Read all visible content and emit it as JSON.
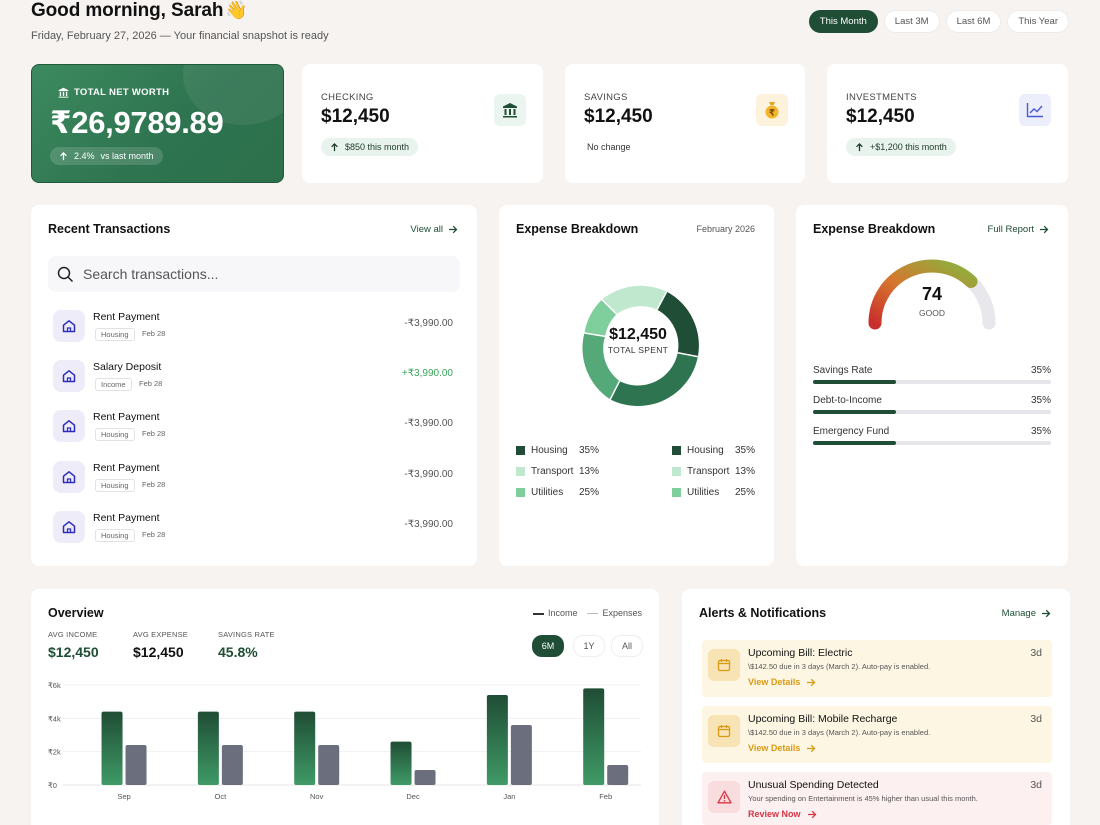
{
  "header": {
    "greeting": "Good morning, Sarah",
    "wave": "👋",
    "subtitle": "Friday, February 27, 2026 — Your financial snapshot is ready",
    "ranges": [
      "This Month",
      "Last 3M",
      "Last 6M",
      "This Year"
    ],
    "active_range": "This Month"
  },
  "net_worth": {
    "label": "TOTAL NET WORTH",
    "value": "₹26,9789.89",
    "change": "2.4%",
    "change_suffix": "vs last month"
  },
  "accounts": [
    {
      "label": "CHECKING",
      "amount": "$12,450",
      "note": "$850 this month",
      "icon": "bank-icon"
    },
    {
      "label": "SAVINGS",
      "amount": "$12,450",
      "note": "No change",
      "icon": "money-bag-icon"
    },
    {
      "label": "INVESTMENTS",
      "amount": "$12,450",
      "note": "+$1,200 this month",
      "icon": "trend-line-icon"
    }
  ],
  "transactions": {
    "title": "Recent Transactions",
    "view_all": "View all",
    "search_placeholder": "Search transactions...",
    "items": [
      {
        "name": "Rent Payment",
        "tag": "Housing",
        "date": "Feb 28",
        "amount": "-₹3,990.00"
      },
      {
        "name": "Salary Deposit",
        "tag": "Income",
        "date": "Feb 28",
        "amount": "+₹3,990.00"
      },
      {
        "name": "Rent Payment",
        "tag": "Housing",
        "date": "Feb 28",
        "amount": "-₹3,990.00"
      },
      {
        "name": "Rent Payment",
        "tag": "Housing",
        "date": "Feb 28",
        "amount": "-₹3,990.00"
      },
      {
        "name": "Rent Payment",
        "tag": "Housing",
        "date": "Feb 28",
        "amount": "-₹3,990.00"
      }
    ]
  },
  "expense": {
    "title": "Expense Breakdown",
    "period": "February 2026",
    "total": "$12,450",
    "total_label": "TOTAL SPENT",
    "legend": [
      {
        "name": "Housing",
        "pct": "35%",
        "color": "#1f4d35"
      },
      {
        "name": "Transport",
        "pct": "13%",
        "color": "#bfe8cf"
      },
      {
        "name": "Utilities",
        "pct": "25%",
        "color": "#7fcf9c"
      },
      {
        "name": "Housing",
        "pct": "35%",
        "color": "#1f4d35"
      },
      {
        "name": "Transport",
        "pct": "13%",
        "color": "#bfe8cf"
      },
      {
        "name": "Utilities",
        "pct": "25%",
        "color": "#7fcf9c"
      }
    ]
  },
  "score": {
    "title": "Expense Breakdown",
    "link": "Full Report",
    "value": "74",
    "fraction": 0.74,
    "label": "GOOD",
    "metrics": [
      {
        "name": "Savings Rate",
        "pct": "35%",
        "fill": 0.35
      },
      {
        "name": "Debt-to-Income",
        "pct": "35%",
        "fill": 0.35
      },
      {
        "name": "Emergency Fund",
        "pct": "35%",
        "fill": 0.35
      }
    ]
  },
  "overview": {
    "title": "Overview",
    "legend_income": "Income",
    "legend_expenses": "Expenses",
    "stats": [
      {
        "label": "AVG INCOME",
        "value": "$12,450",
        "color": "#1f4d35"
      },
      {
        "label": "AVG EXPENSE",
        "value": "$12,450",
        "color": "#111111"
      },
      {
        "label": "SAVINGS RATE",
        "value": "45.8%",
        "color": "#1f4d35"
      }
    ],
    "tabs": [
      "6M",
      "1Y",
      "All"
    ],
    "active_tab": "6M",
    "chart_data": {
      "type": "bar",
      "categories": [
        "Sep",
        "Oct",
        "Nov",
        "Dec",
        "Jan",
        "Feb"
      ],
      "y_ticks": [
        "₹0",
        "₹2k",
        "₹4k",
        "₹6k"
      ],
      "ylim": [
        0,
        6000
      ],
      "series": [
        {
          "name": "Income",
          "values": [
            4400,
            4400,
            4400,
            2600,
            5400,
            5800
          ],
          "color": "#2f7a50"
        },
        {
          "name": "Expenses",
          "values": [
            2400,
            2400,
            2400,
            900,
            3600,
            1200
          ],
          "color": "#6b6e7d"
        }
      ]
    }
  },
  "alerts": {
    "title": "Alerts & Notifications",
    "manage": "Manage",
    "items": [
      {
        "title": "Upcoming Bill: Electric",
        "desc": "\\$142.50 due in 3 days (March 2). Auto-pay is enabled.",
        "action": "View Details",
        "time": "3d",
        "bg": "#fdf6e3",
        "icon_bg": "#f7e3b3",
        "action_color": "#d99a14",
        "icon": "calendar-icon"
      },
      {
        "title": "Upcoming Bill: Mobile Recharge",
        "desc": "\\$142.50 due in 3 days (March 2). Auto-pay is enabled.",
        "action": "View Details",
        "time": "3d",
        "bg": "#fdf6e3",
        "icon_bg": "#f7e3b3",
        "action_color": "#d99a14",
        "icon": "calendar-icon"
      },
      {
        "title": "Unusual Spending Detected",
        "desc": "Your spending on Entertainment is 45% higher than usual this month.",
        "action": "Review Now",
        "time": "3d",
        "bg": "#fdf0f1",
        "icon_bg": "#f9dcde",
        "action_color": "#d63545",
        "icon": "warning-icon"
      }
    ]
  }
}
